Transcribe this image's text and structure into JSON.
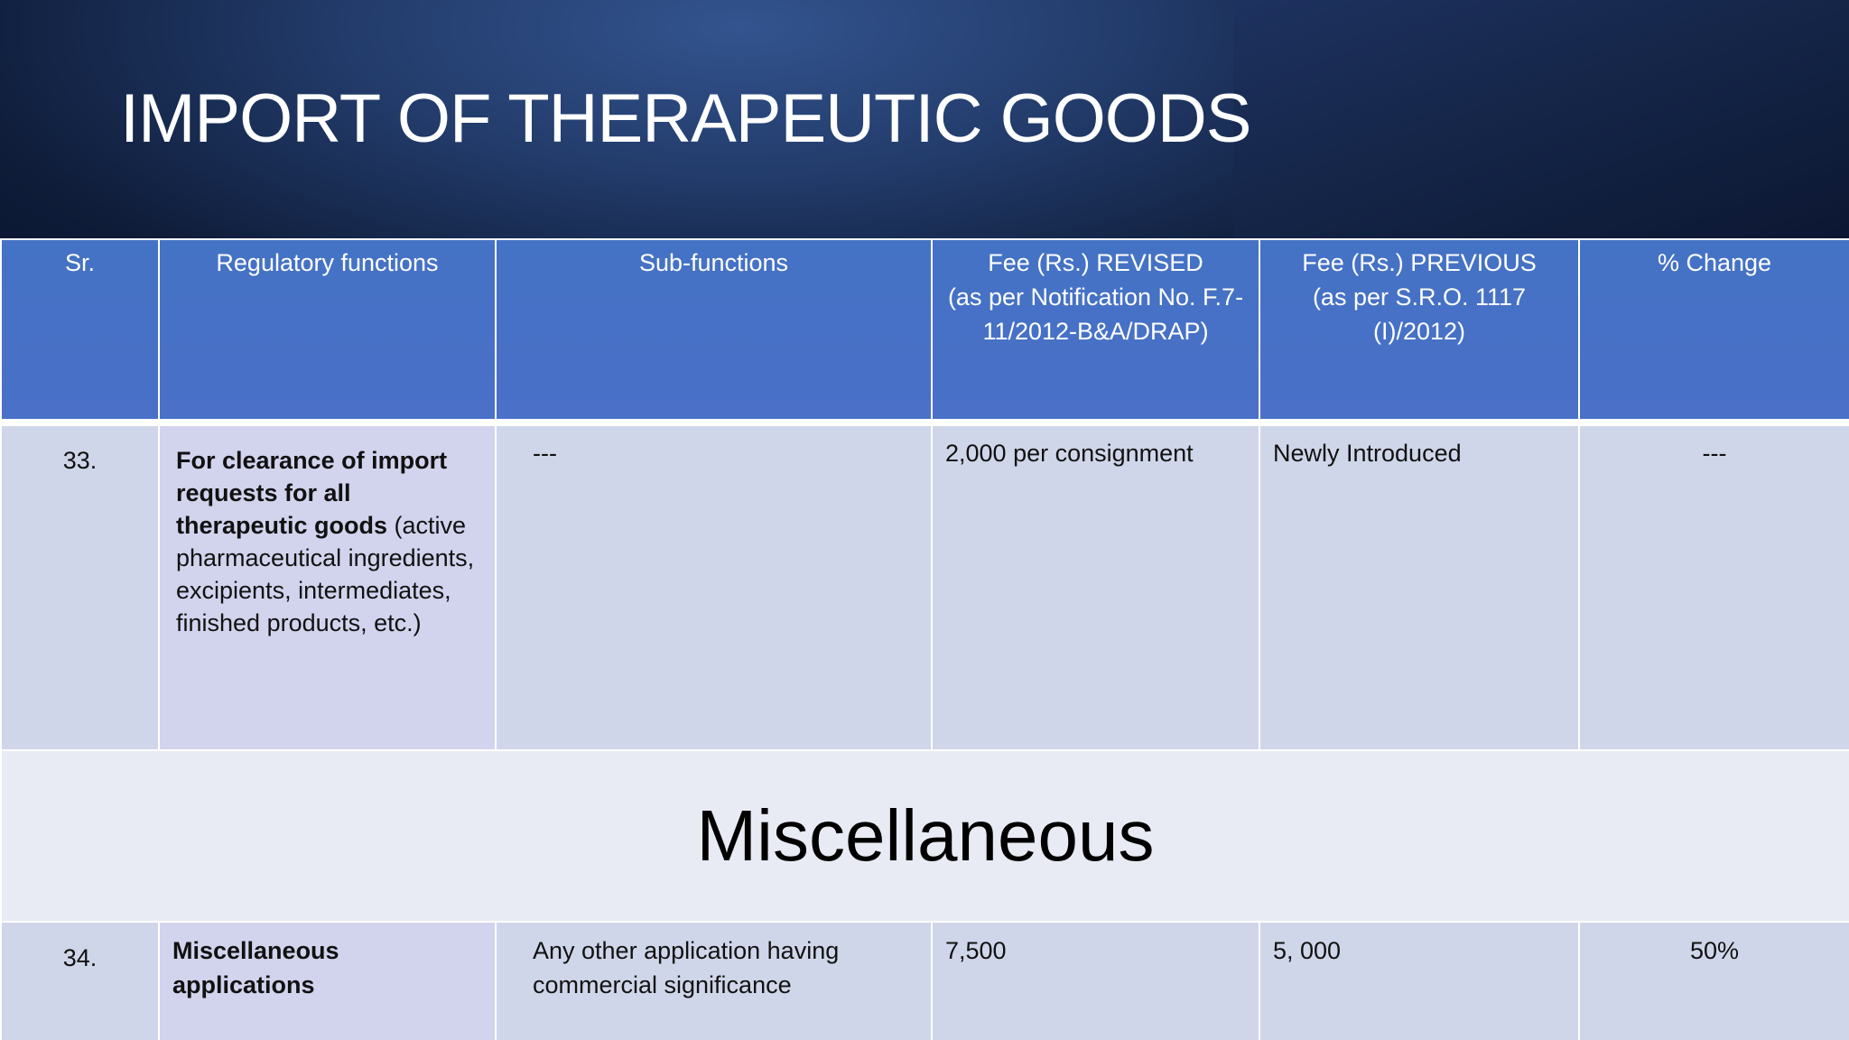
{
  "slide": {
    "title": "IMPORT OF THERAPEUTIC GOODS"
  },
  "table": {
    "headers": {
      "sr": "Sr.",
      "regulatory": "Regulatory functions",
      "sub": "Sub-functions",
      "fee_revised_line1": "Fee (Rs.) REVISED",
      "fee_revised_line2": "(as per Notification No. F.7-11/2012-B&A/DRAP)",
      "fee_previous_line1": "Fee (Rs.) PREVIOUS",
      "fee_previous_line2": "(as per S.R.O. 1117 (I)/2012)",
      "change": "% Change"
    },
    "rows": [
      {
        "sr": "33.",
        "regulatory_bold": "For clearance of import requests for all therapeutic goods",
        "regulatory_note": "(active pharmaceutical ingredients, excipients, intermediates, finished products, etc.)",
        "sub": "---",
        "fee_revised": "2,000 per consignment",
        "fee_previous": "Newly Introduced",
        "change": "---"
      },
      {
        "section": "Miscellaneous"
      },
      {
        "sr": "34.",
        "regulatory_bold": "Miscellaneous applications",
        "sub": "Any other application having commercial significance",
        "fee_revised": "7,500",
        "fee_previous": "5, 000",
        "change": "50%"
      }
    ]
  }
}
